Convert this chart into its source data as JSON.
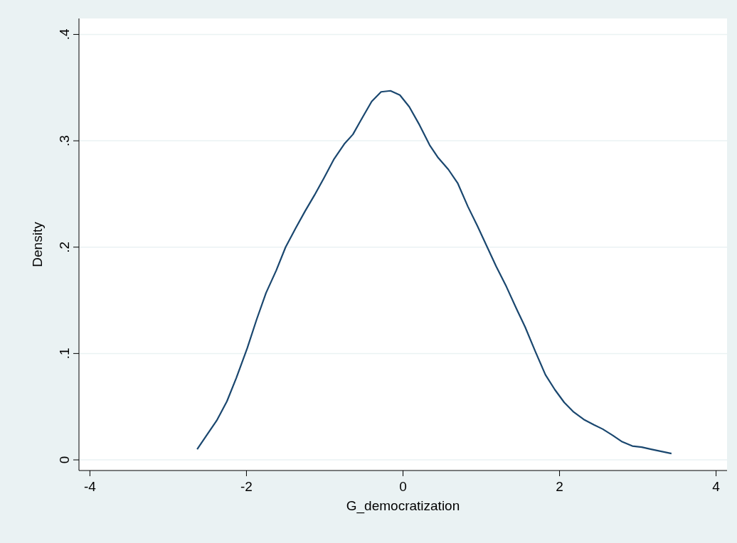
{
  "chart_data": {
    "type": "line",
    "xlabel": "G_democratization",
    "ylabel": "Density",
    "xlim": [
      -4.14,
      4.14
    ],
    "ylim": [
      -0.01,
      0.415
    ],
    "xticks": [
      -4,
      -2,
      0,
      2,
      4
    ],
    "yticks": [
      0,
      {
        "value": 0.1,
        "label": ".1"
      },
      {
        "value": 0.2,
        "label": ".2"
      },
      {
        "value": 0.3,
        "label": ".3"
      },
      {
        "value": 0.4,
        "label": ".4"
      }
    ],
    "grid": "y",
    "marker": "none",
    "line_style": "solid",
    "series": [
      {
        "color": "#1a476f",
        "x": [
          -2.63,
          -2.51,
          -2.38,
          -2.25,
          -2.13,
          -1.99,
          -1.87,
          -1.75,
          -1.62,
          -1.5,
          -1.37,
          -1.25,
          -1.13,
          -1.01,
          -0.88,
          -0.75,
          -0.64,
          -0.51,
          -0.4,
          -0.28,
          -0.16,
          -0.04,
          0.08,
          0.21,
          0.34,
          0.45,
          0.58,
          0.7,
          0.83,
          0.95,
          1.07,
          1.19,
          1.32,
          1.45,
          1.56,
          1.69,
          1.82,
          1.94,
          2.06,
          2.18,
          2.31,
          2.44,
          2.55,
          2.68,
          2.8,
          2.93,
          3.05,
          3.17,
          3.3,
          3.43
        ],
        "values": [
          0.01,
          0.023,
          0.037,
          0.055,
          0.077,
          0.105,
          0.132,
          0.157,
          0.178,
          0.2,
          0.218,
          0.234,
          0.249,
          0.265,
          0.283,
          0.297,
          0.306,
          0.323,
          0.337,
          0.346,
          0.347,
          0.343,
          0.332,
          0.315,
          0.296,
          0.284,
          0.273,
          0.26,
          0.238,
          0.22,
          0.201,
          0.182,
          0.163,
          0.142,
          0.125,
          0.102,
          0.08,
          0.066,
          0.054,
          0.045,
          0.038,
          0.033,
          0.029,
          0.023,
          0.017,
          0.013,
          0.012,
          0.01,
          0.008,
          0.006
        ]
      }
    ]
  }
}
